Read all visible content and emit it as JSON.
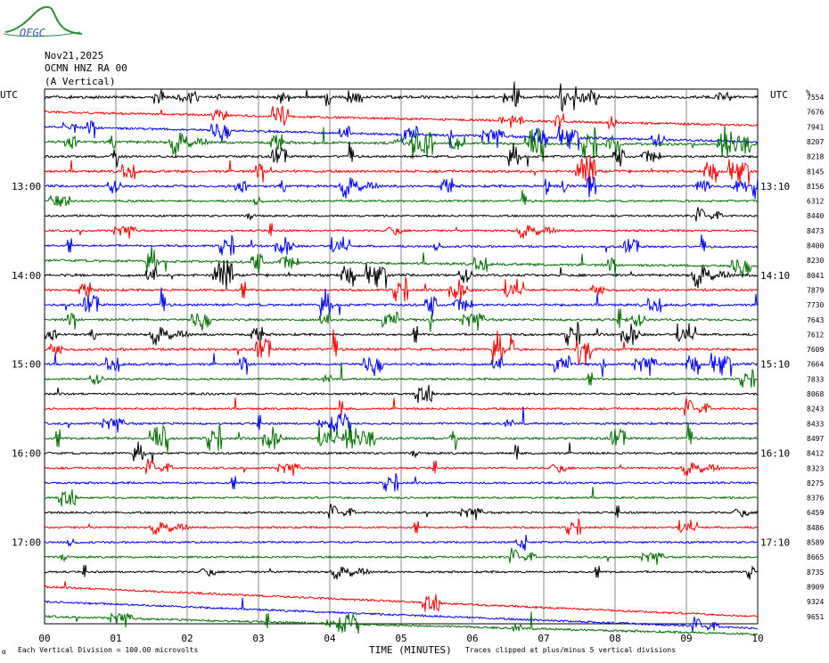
{
  "logo": {
    "text": "OFGC",
    "color": "#2f8f3a"
  },
  "header": {
    "date": "Nov21,2025",
    "station": "OCMN HNZ RA 00",
    "component": "(A Vertical)"
  },
  "utc_left": "UTC",
  "utc_right": "UTC",
  "footer": {
    "scale_note": "Each Vertical Division =  100.00 microvolts",
    "clip_note": "Traces clipped at plus/minus 5 vertical divisions",
    "marker": "α"
  },
  "chart_data": {
    "type": "line",
    "title": "",
    "xlabel": "TIME (MINUTES)",
    "x_ticks": [
      "00",
      "01",
      "02",
      "03",
      "04",
      "05",
      "06",
      "07",
      "08",
      "09",
      "10"
    ],
    "x_range": [
      0,
      10
    ],
    "trace_colors": [
      "#000000",
      "#ff0000",
      "#0000ff",
      "#007000"
    ],
    "left_time_labels": [
      {
        "label": "13:00",
        "trace_index": 6
      },
      {
        "label": "14:00",
        "trace_index": 12
      },
      {
        "label": "15:00",
        "trace_index": 18
      },
      {
        "label": "16:00",
        "trace_index": 24
      },
      {
        "label": "17:00",
        "trace_index": 30
      }
    ],
    "right_time_labels": [
      {
        "label": "13:10",
        "trace_index": 6
      },
      {
        "label": "14:10",
        "trace_index": 12
      },
      {
        "label": "15:10",
        "trace_index": 18
      },
      {
        "label": "16:10",
        "trace_index": 24
      },
      {
        "label": "17:10",
        "trace_index": 30
      }
    ],
    "right_corner_label": "%",
    "rms_values": [
      "7554",
      "7676",
      "7941",
      "8207",
      "8218",
      "8145",
      "8156",
      "6312",
      "8440",
      "8473",
      "8400",
      "8230",
      "8041",
      "7879",
      "7730",
      "7643",
      "7612",
      "7609",
      "7664",
      "7833",
      "8068",
      "8243",
      "8433",
      "8497",
      "8412",
      "8323",
      "8275",
      "8376",
      "6459",
      "8486",
      "8589",
      "8665",
      "8735",
      "8909",
      "9324",
      "9651"
    ],
    "trace_drift": [
      0,
      0.9,
      1.0,
      0.2,
      0,
      0,
      0,
      0,
      0,
      0,
      0.1,
      0.4,
      0,
      0,
      0,
      0,
      0,
      0,
      0,
      0,
      0,
      0,
      0,
      0,
      0,
      0,
      0,
      0,
      0,
      0,
      0,
      0,
      0,
      2.0,
      1.8,
      1.2
    ],
    "trace_activity": [
      2.6,
      1.4,
      2.0,
      2.4,
      1.6,
      2.2,
      2.0,
      1.0,
      0.8,
      0.9,
      1.2,
      2.0,
      2.2,
      1.6,
      2.0,
      1.8,
      1.6,
      2.4,
      2.0,
      1.0,
      1.0,
      1.2,
      1.2,
      1.8,
      1.2,
      0.9,
      1.0,
      0.9,
      0.8,
      0.8,
      0.8,
      0.9,
      0.8,
      1.0,
      0.9,
      1.2
    ]
  }
}
